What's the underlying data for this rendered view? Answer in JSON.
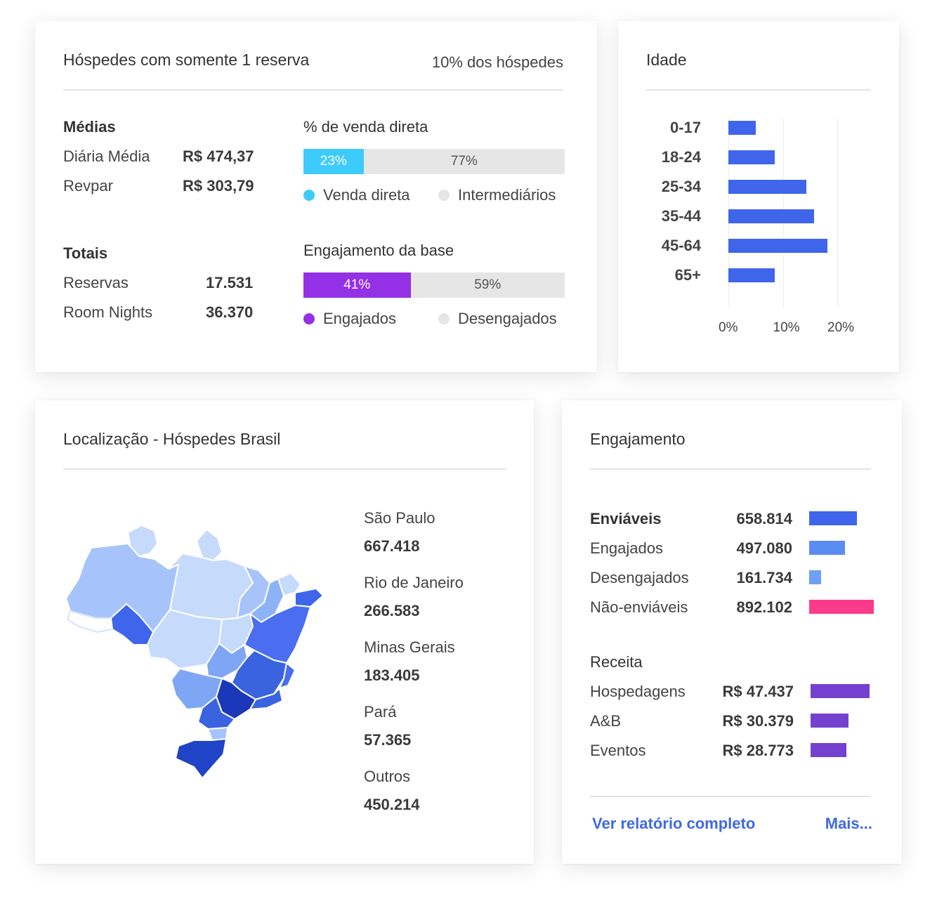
{
  "colors": {
    "direct": "#3dcbfb",
    "engaged_purple": "#9430e6",
    "blue": "#3f66ea",
    "blue_light": "#5b8cf2",
    "pink": "#fb3a8c",
    "violet": "#7440cf",
    "grey_bar": "#e6e6e6",
    "link": "#3e69e6"
  },
  "guests_card": {
    "title": "Hóspedes com somente 1 reserva",
    "subtitle": "10% dos hóspedes",
    "averages": {
      "heading": "Médias",
      "rows": [
        {
          "label": "Diária Média",
          "value": "R$ 474,37"
        },
        {
          "label": "Revpar",
          "value": "R$ 303,79"
        }
      ]
    },
    "totals": {
      "heading": "Totais",
      "rows": [
        {
          "label": "Reservas",
          "value": "17.531"
        },
        {
          "label": "Room Nights",
          "value": "36.370"
        }
      ]
    },
    "direct_sales": {
      "heading": "% de venda direta",
      "share": 0.23,
      "left_label": "23%",
      "right_label": "77%",
      "legend_left": "Venda direta",
      "legend_right": "Intermediários"
    },
    "engagement": {
      "heading": "Engajamento da base",
      "share": 0.41,
      "left_label": "41%",
      "right_label": "59%",
      "legend_left": "Engajados",
      "legend_right": "Desengajados"
    }
  },
  "age_card": {
    "title": "Idade",
    "chart_data": {
      "type": "bar",
      "orientation": "horizontal",
      "categories": [
        "0-17",
        "18-24",
        "25-34",
        "35-44",
        "45-64",
        "65+"
      ],
      "values": [
        5,
        8.5,
        14.3,
        15.8,
        18.2,
        8.5
      ],
      "xlim": [
        0,
        20
      ],
      "xticks": [
        "0%",
        "10%",
        "20%"
      ],
      "grid": true
    }
  },
  "location_card": {
    "title": "Localização - Hóspedes Brasil",
    "states": [
      {
        "name": "São Paulo",
        "value": "667.418"
      },
      {
        "name": "Rio de Janeiro",
        "value": "266.583"
      },
      {
        "name": "Minas Gerais",
        "value": "183.405"
      },
      {
        "name": "Pará",
        "value": "57.365"
      },
      {
        "name": "Outros",
        "value": "450.214"
      }
    ]
  },
  "engagement_card": {
    "title": "Engajamento",
    "sendable": [
      {
        "label": "Enviáveis",
        "value": "658.814",
        "amount": 658814,
        "color": "#3f66ea",
        "bold": true
      },
      {
        "label": "Engajados",
        "value": "497.080",
        "amount": 497080,
        "color": "#5b8cf2",
        "bold": false
      },
      {
        "label": "Desengajados",
        "value": "161.734",
        "amount": 161734,
        "color": "#6fa0f7",
        "bold": false
      },
      {
        "label": "Não-enviáveis",
        "value": "892.102",
        "amount": 892102,
        "color": "#fb3a8c",
        "bold": false
      }
    ],
    "revenue_heading": "Receita",
    "revenue": [
      {
        "label": "Hospedagens",
        "value": "R$ 47.437",
        "amount": 47437
      },
      {
        "label": "A&B",
        "value": "R$ 30.379",
        "amount": 30379
      },
      {
        "label": "Eventos",
        "value": "R$ 28.773",
        "amount": 28773
      }
    ],
    "link_report": "Ver relatório completo",
    "link_more": "Mais..."
  }
}
